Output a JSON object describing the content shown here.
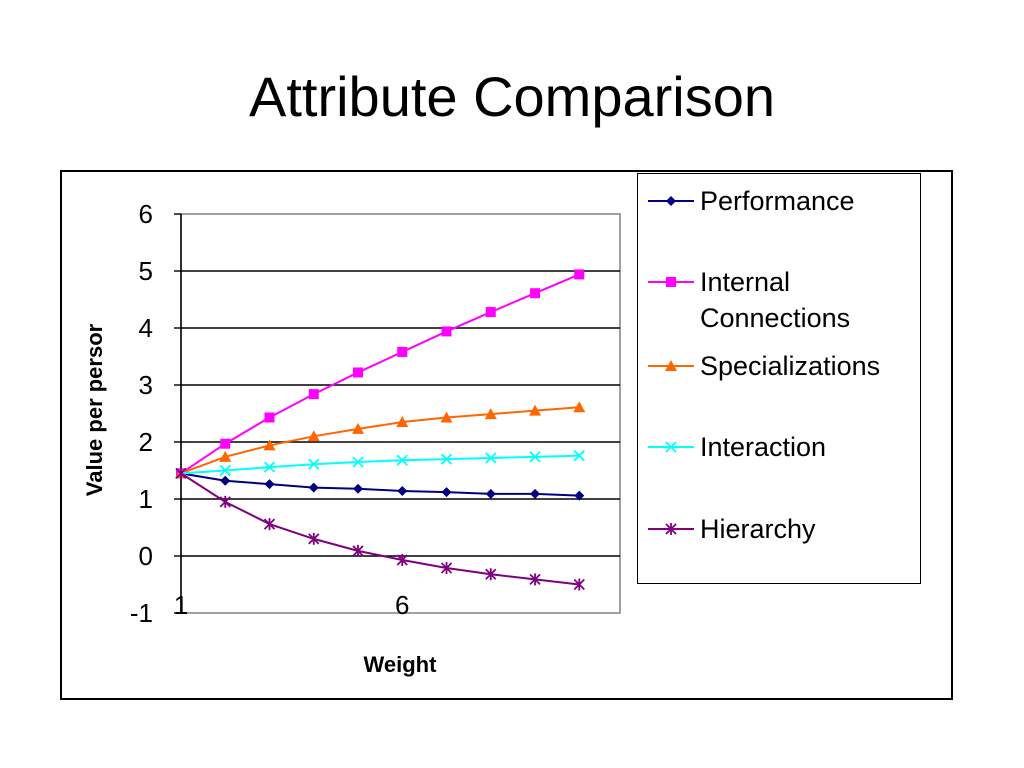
{
  "slide": {
    "title": "Attribute Comparison"
  },
  "chart_data": {
    "type": "line",
    "title": "",
    "xlabel": "Weight",
    "ylabel": "Value per persor",
    "x": [
      1,
      2,
      3,
      4,
      5,
      6,
      7,
      8,
      9,
      10
    ],
    "x_tick_labels": [
      {
        "x": 1,
        "label": "1"
      },
      {
        "x": 6,
        "label": "6"
      }
    ],
    "ylim": [
      -1,
      6
    ],
    "y_ticks": [
      -1,
      0,
      1,
      2,
      3,
      4,
      5,
      6
    ],
    "grid": "horizontal",
    "legend": "right",
    "series": [
      {
        "name": "Performance",
        "color": "#000080",
        "marker": "diamond",
        "values": [
          1.45,
          1.32,
          1.26,
          1.2,
          1.18,
          1.14,
          1.12,
          1.09,
          1.09,
          1.06
        ]
      },
      {
        "name": "Internal Connections",
        "color": "#ff00ff",
        "marker": "square",
        "values": [
          1.45,
          1.97,
          2.43,
          2.84,
          3.22,
          3.58,
          3.94,
          4.28,
          4.61,
          4.94
        ]
      },
      {
        "name": "Specializations",
        "color": "#ff6600",
        "marker": "triangle",
        "values": [
          1.45,
          1.74,
          1.94,
          2.1,
          2.23,
          2.35,
          2.43,
          2.49,
          2.55,
          2.61
        ]
      },
      {
        "name": "Interaction",
        "color": "#00ffff",
        "marker": "x",
        "values": [
          1.45,
          1.5,
          1.56,
          1.61,
          1.65,
          1.68,
          1.7,
          1.72,
          1.74,
          1.76
        ]
      },
      {
        "name": "Hierarchy",
        "color": "#800080",
        "marker": "star",
        "values": [
          1.45,
          0.95,
          0.56,
          0.3,
          0.09,
          -0.07,
          -0.21,
          -0.32,
          -0.41,
          -0.5
        ]
      }
    ]
  }
}
